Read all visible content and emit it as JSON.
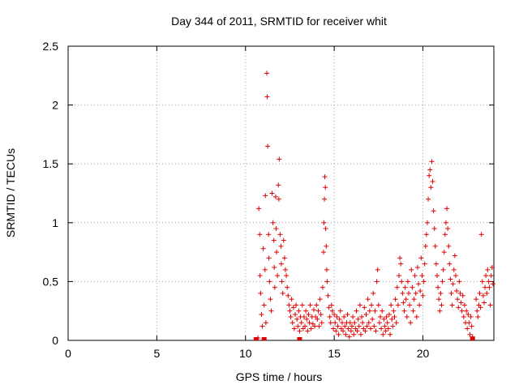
{
  "chart_data": {
    "type": "scatter",
    "title": "Day 344 of 2011, SRMTID for receiver whit",
    "xlabel": "GPS time / hours",
    "ylabel": "SRMTID / TECUs",
    "xlim": [
      0,
      24
    ],
    "ylim": [
      0,
      2.5
    ],
    "xticks": [
      0,
      5,
      10,
      15,
      20
    ],
    "yticks": [
      0,
      0.5,
      1,
      1.5,
      2,
      2.5
    ],
    "xtick_labels": [
      "0",
      "5",
      "10",
      "15",
      "20"
    ],
    "ytick_labels": [
      "0",
      "0.5",
      "1",
      "1.5",
      "2",
      "2.5"
    ],
    "grid": true,
    "marker": "+",
    "series": [
      {
        "name": "SRMTID",
        "color": "#e00000",
        "points": [
          [
            10.7,
            0.02
          ],
          [
            10.75,
            1.12
          ],
          [
            10.8,
            0.9
          ],
          [
            10.82,
            0.55
          ],
          [
            10.85,
            0.4
          ],
          [
            10.9,
            0.22
          ],
          [
            10.95,
            0.12
          ],
          [
            11.0,
            0.78
          ],
          [
            11.05,
            0.3
          ],
          [
            11.1,
            0.6
          ],
          [
            11.12,
            1.23
          ],
          [
            11.15,
            0.15
          ],
          [
            11.2,
            2.27
          ],
          [
            11.22,
            2.07
          ],
          [
            11.25,
            1.65
          ],
          [
            11.3,
            0.9
          ],
          [
            11.32,
            0.7
          ],
          [
            11.35,
            0.5
          ],
          [
            11.4,
            0.35
          ],
          [
            11.45,
            0.25
          ],
          [
            11.5,
            1.25
          ],
          [
            11.55,
            1.0
          ],
          [
            11.6,
            0.85
          ],
          [
            11.62,
            0.62
          ],
          [
            11.65,
            0.45
          ],
          [
            11.7,
            1.22
          ],
          [
            11.72,
            0.95
          ],
          [
            11.75,
            0.75
          ],
          [
            11.8,
            0.55
          ],
          [
            11.85,
            1.32
          ],
          [
            11.88,
            1.2
          ],
          [
            11.9,
            1.54
          ],
          [
            11.95,
            0.9
          ],
          [
            12.0,
            0.8
          ],
          [
            12.02,
            0.65
          ],
          [
            12.05,
            0.5
          ],
          [
            12.1,
            0.4
          ],
          [
            12.15,
            0.85
          ],
          [
            12.2,
            0.7
          ],
          [
            12.25,
            0.6
          ],
          [
            12.3,
            0.55
          ],
          [
            12.35,
            0.45
          ],
          [
            12.4,
            0.38
          ],
          [
            12.45,
            0.3
          ],
          [
            12.5,
            0.25
          ],
          [
            12.55,
            0.2
          ],
          [
            12.6,
            0.35
          ],
          [
            12.65,
            0.15
          ],
          [
            12.7,
            0.28
          ],
          [
            12.75,
            0.1
          ],
          [
            12.8,
            0.22
          ],
          [
            12.85,
            0.3
          ],
          [
            12.9,
            0.18
          ],
          [
            12.95,
            0.12
          ],
          [
            13.0,
            0.25
          ],
          [
            13.05,
            0.08
          ],
          [
            13.1,
            0.2
          ],
          [
            13.15,
            0.15
          ],
          [
            13.2,
            0.3
          ],
          [
            13.25,
            0.1
          ],
          [
            13.3,
            0.2
          ],
          [
            13.35,
            0.12
          ],
          [
            13.4,
            0.25
          ],
          [
            13.45,
            0.18
          ],
          [
            13.5,
            0.08
          ],
          [
            13.55,
            0.22
          ],
          [
            13.6,
            0.15
          ],
          [
            13.65,
            0.3
          ],
          [
            13.7,
            0.1
          ],
          [
            13.75,
            0.2
          ],
          [
            13.8,
            0.14
          ],
          [
            13.85,
            0.26
          ],
          [
            13.9,
            0.12
          ],
          [
            13.95,
            0.2
          ],
          [
            14.0,
            0.3
          ],
          [
            14.05,
            0.18
          ],
          [
            14.1,
            0.25
          ],
          [
            14.15,
            0.12
          ],
          [
            14.2,
            0.35
          ],
          [
            14.25,
            0.22
          ],
          [
            14.3,
            0.15
          ],
          [
            14.35,
            0.45
          ],
          [
            14.4,
            0.75
          ],
          [
            14.42,
            1.0
          ],
          [
            14.45,
            1.2
          ],
          [
            14.47,
            1.39
          ],
          [
            14.5,
            1.3
          ],
          [
            14.52,
            0.95
          ],
          [
            14.55,
            0.8
          ],
          [
            14.58,
            0.6
          ],
          [
            14.6,
            0.5
          ],
          [
            14.65,
            0.38
          ],
          [
            14.7,
            0.28
          ],
          [
            14.75,
            0.2
          ],
          [
            14.8,
            0.15
          ],
          [
            14.85,
            0.3
          ],
          [
            14.9,
            0.25
          ],
          [
            14.95,
            0.1
          ],
          [
            15.0,
            0.22
          ],
          [
            15.05,
            0.15
          ],
          [
            15.1,
            0.08
          ],
          [
            15.15,
            0.2
          ],
          [
            15.2,
            0.12
          ],
          [
            15.25,
            0.05
          ],
          [
            15.3,
            0.18
          ],
          [
            15.35,
            0.25
          ],
          [
            15.4,
            0.1
          ],
          [
            15.45,
            0.15
          ],
          [
            15.5,
            0.08
          ],
          [
            15.55,
            0.2
          ],
          [
            15.6,
            0.12
          ],
          [
            15.65,
            0.05
          ],
          [
            15.7,
            0.15
          ],
          [
            15.75,
            0.22
          ],
          [
            15.8,
            0.1
          ],
          [
            15.85,
            0.03
          ],
          [
            15.9,
            0.15
          ],
          [
            15.95,
            0.08
          ],
          [
            16.0,
            0.12
          ],
          [
            16.05,
            0.2
          ],
          [
            16.1,
            0.05
          ],
          [
            16.15,
            0.15
          ],
          [
            16.2,
            0.1
          ],
          [
            16.25,
            0.25
          ],
          [
            16.3,
            0.08
          ],
          [
            16.35,
            0.18
          ],
          [
            16.4,
            0.12
          ],
          [
            16.45,
            0.3
          ],
          [
            16.5,
            0.05
          ],
          [
            16.55,
            0.2
          ],
          [
            16.6,
            0.15
          ],
          [
            16.65,
            0.1
          ],
          [
            16.7,
            0.28
          ],
          [
            16.75,
            0.08
          ],
          [
            16.8,
            0.22
          ],
          [
            16.85,
            0.12
          ],
          [
            16.9,
            0.35
          ],
          [
            16.95,
            0.15
          ],
          [
            17.0,
            0.25
          ],
          [
            17.05,
            0.1
          ],
          [
            17.1,
            0.3
          ],
          [
            17.15,
            0.18
          ],
          [
            17.2,
            0.4
          ],
          [
            17.25,
            0.12
          ],
          [
            17.3,
            0.25
          ],
          [
            17.35,
            0.08
          ],
          [
            17.4,
            0.5
          ],
          [
            17.45,
            0.6
          ],
          [
            17.5,
            0.3
          ],
          [
            17.55,
            0.15
          ],
          [
            17.6,
            0.2
          ],
          [
            17.65,
            0.1
          ],
          [
            17.7,
            0.25
          ],
          [
            17.75,
            0.05
          ],
          [
            17.8,
            0.18
          ],
          [
            17.85,
            0.12
          ],
          [
            17.9,
            0.08
          ],
          [
            17.95,
            0.2
          ],
          [
            18.0,
            0.15
          ],
          [
            18.05,
            0.1
          ],
          [
            18.1,
            0.22
          ],
          [
            18.15,
            0.05
          ],
          [
            18.2,
            0.3
          ],
          [
            18.25,
            0.18
          ],
          [
            18.3,
            0.12
          ],
          [
            18.35,
            0.25
          ],
          [
            18.4,
            0.2
          ],
          [
            18.45,
            0.35
          ],
          [
            18.5,
            0.15
          ],
          [
            18.55,
            0.45
          ],
          [
            18.6,
            0.3
          ],
          [
            18.65,
            0.55
          ],
          [
            18.7,
            0.7
          ],
          [
            18.75,
            0.65
          ],
          [
            18.8,
            0.5
          ],
          [
            18.85,
            0.4
          ],
          [
            18.9,
            0.32
          ],
          [
            18.95,
            0.25
          ],
          [
            19.0,
            0.45
          ],
          [
            19.05,
            0.35
          ],
          [
            19.1,
            0.2
          ],
          [
            19.15,
            0.5
          ],
          [
            19.2,
            0.4
          ],
          [
            19.25,
            0.3
          ],
          [
            19.3,
            0.15
          ],
          [
            19.35,
            0.6
          ],
          [
            19.4,
            0.45
          ],
          [
            19.45,
            0.25
          ],
          [
            19.5,
            0.35
          ],
          [
            19.55,
            0.55
          ],
          [
            19.6,
            0.4
          ],
          [
            19.65,
            0.2
          ],
          [
            19.7,
            0.62
          ],
          [
            19.75,
            0.48
          ],
          [
            19.8,
            0.3
          ],
          [
            19.85,
            0.42
          ],
          [
            19.9,
            0.7
          ],
          [
            19.95,
            0.55
          ],
          [
            20.0,
            0.38
          ],
          [
            20.05,
            0.5
          ],
          [
            20.1,
            0.65
          ],
          [
            20.15,
            0.8
          ],
          [
            20.2,
            0.9
          ],
          [
            20.25,
            1.0
          ],
          [
            20.3,
            1.2
          ],
          [
            20.35,
            1.4
          ],
          [
            20.4,
            1.45
          ],
          [
            20.45,
            1.3
          ],
          [
            20.5,
            1.52
          ],
          [
            20.55,
            1.35
          ],
          [
            20.6,
            1.1
          ],
          [
            20.65,
            0.95
          ],
          [
            20.7,
            0.8
          ],
          [
            20.75,
            0.65
          ],
          [
            20.8,
            0.55
          ],
          [
            20.85,
            0.45
          ],
          [
            20.9,
            0.35
          ],
          [
            20.95,
            0.25
          ],
          [
            21.0,
            0.4
          ],
          [
            21.05,
            0.3
          ],
          [
            21.1,
            0.5
          ],
          [
            21.15,
            0.6
          ],
          [
            21.2,
            0.75
          ],
          [
            21.25,
            0.9
          ],
          [
            21.3,
            1.0
          ],
          [
            21.35,
            1.12
          ],
          [
            21.4,
            0.95
          ],
          [
            21.45,
            0.8
          ],
          [
            21.5,
            0.65
          ],
          [
            21.55,
            0.52
          ],
          [
            21.6,
            0.4
          ],
          [
            21.65,
            0.3
          ],
          [
            21.7,
            0.48
          ],
          [
            21.75,
            0.6
          ],
          [
            21.8,
            0.72
          ],
          [
            21.85,
            0.55
          ],
          [
            21.9,
            0.42
          ],
          [
            21.95,
            0.35
          ],
          [
            22.0,
            0.28
          ],
          [
            22.05,
            0.5
          ],
          [
            22.1,
            0.4
          ],
          [
            22.15,
            0.32
          ],
          [
            22.2,
            0.25
          ],
          [
            22.25,
            0.38
          ],
          [
            22.3,
            0.2
          ],
          [
            22.35,
            0.3
          ],
          [
            22.4,
            0.15
          ],
          [
            22.45,
            0.25
          ],
          [
            22.5,
            0.1
          ],
          [
            22.55,
            0.22
          ],
          [
            22.6,
            0.15
          ],
          [
            22.65,
            0.05
          ],
          [
            22.7,
            0.2
          ],
          [
            22.75,
            0.12
          ],
          [
            22.8,
            0.03
          ],
          [
            23.0,
            0.35
          ],
          [
            23.05,
            0.25
          ],
          [
            23.1,
            0.2
          ],
          [
            23.15,
            0.3
          ],
          [
            23.2,
            0.4
          ],
          [
            23.25,
            0.28
          ],
          [
            23.3,
            0.9
          ],
          [
            23.35,
            0.5
          ],
          [
            23.4,
            0.38
          ],
          [
            23.45,
            0.32
          ],
          [
            23.5,
            0.45
          ],
          [
            23.55,
            0.55
          ],
          [
            23.6,
            0.4
          ],
          [
            23.65,
            0.6
          ],
          [
            23.7,
            0.5
          ],
          [
            23.75,
            0.45
          ],
          [
            23.8,
            0.3
          ],
          [
            23.85,
            0.55
          ],
          [
            23.9,
            0.62
          ],
          [
            23.95,
            0.48
          ]
        ]
      }
    ],
    "zero_markers": [
      10.6,
      11.05,
      13.05,
      22.8
    ]
  }
}
